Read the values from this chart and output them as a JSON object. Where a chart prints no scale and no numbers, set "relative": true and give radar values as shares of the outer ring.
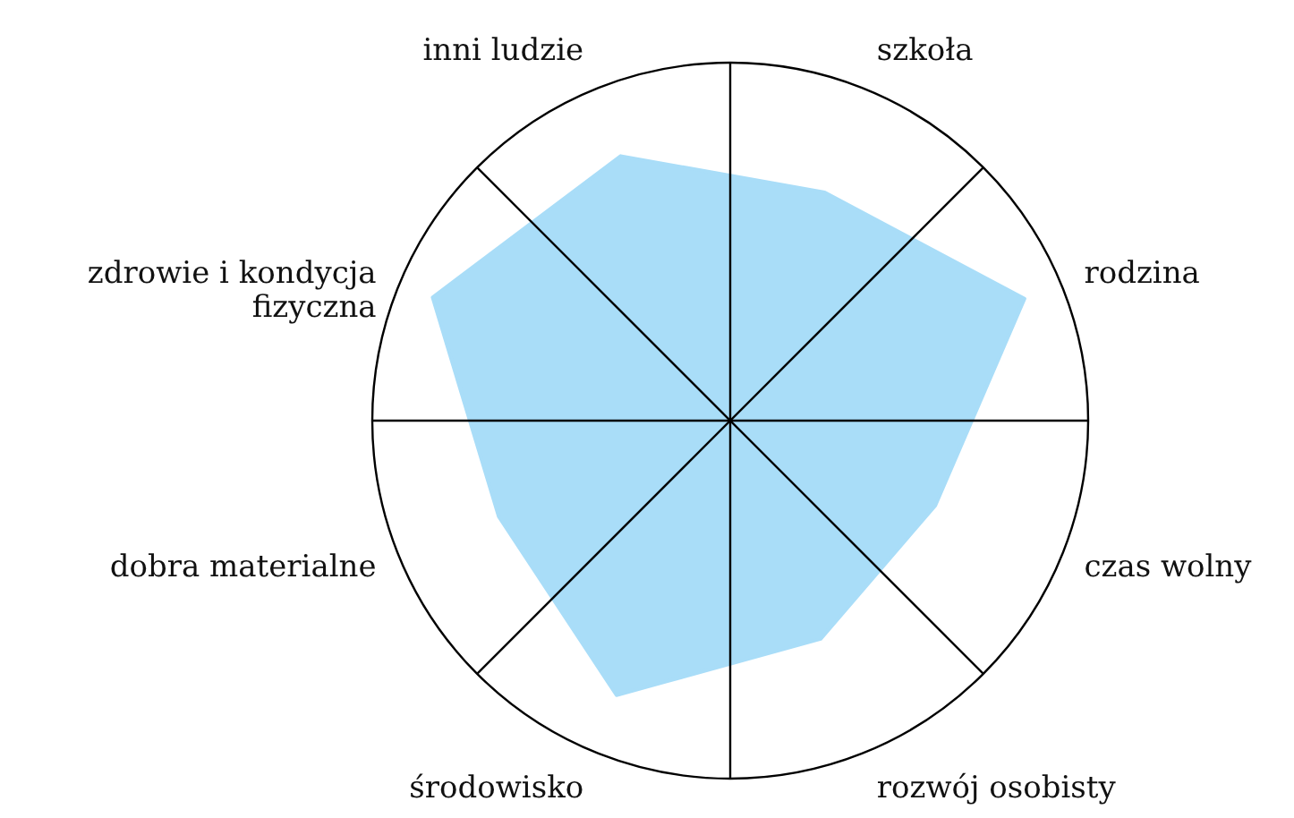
{
  "chart_data": {
    "type": "radar",
    "relative": true,
    "categories": [
      "szkoła",
      "rodzina",
      "czas wolny",
      "rozwój osobisty",
      "środowisko",
      "dobra materialne",
      "zdrowie i kondycja\nfizyczna",
      "inni ludzie"
    ],
    "series": [
      {
        "color": "#a9ddf8",
        "values": [
          0.69,
          0.89,
          0.62,
          0.66,
          0.83,
          0.7,
          0.9,
          0.8
        ]
      }
    ]
  }
}
